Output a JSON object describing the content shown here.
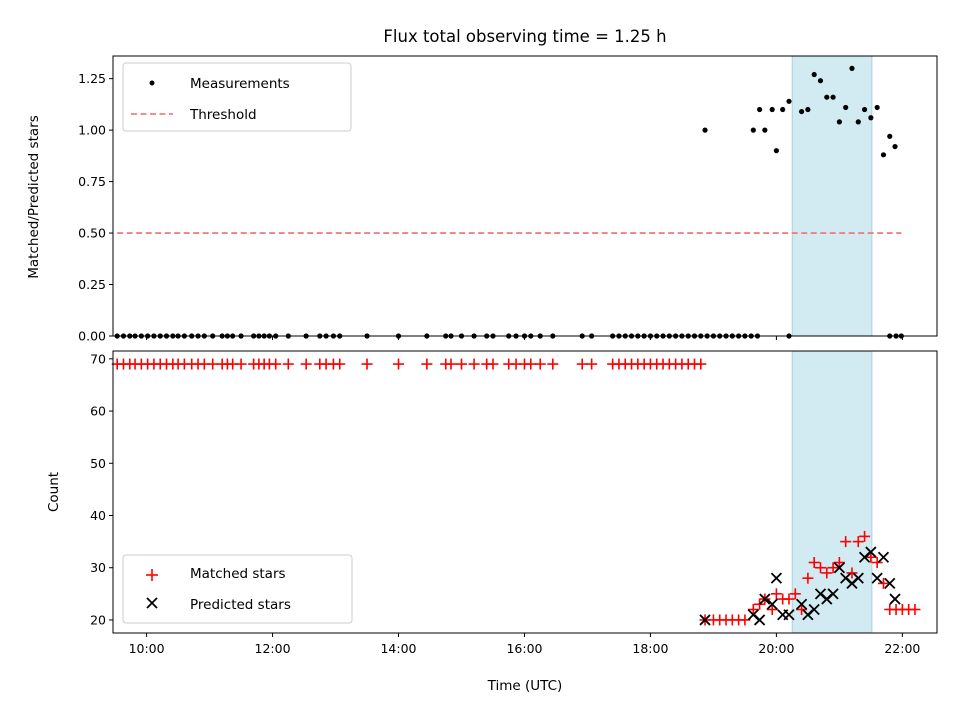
{
  "chart_data": [
    {
      "type": "scatter",
      "title": "Flux total observing time = 1.25 h",
      "xlabel": "",
      "ylabel": "Matched/Predicted stars",
      "xlim": [
        "09:28",
        "22:33"
      ],
      "ylim": [
        0,
        1.36
      ],
      "yticks": [
        "0.00",
        "0.25",
        "0.50",
        "0.75",
        "1.00",
        "1.25"
      ],
      "xticks": [
        "10:00",
        "12:00",
        "14:00",
        "16:00",
        "18:00",
        "20:00",
        "22:00"
      ],
      "shaded_span": [
        "20:15",
        "21:31"
      ],
      "legend": {
        "placement": "top-left",
        "entries": [
          "Measurements",
          "Threshold"
        ]
      },
      "series": [
        {
          "name": "Measurements",
          "marker": "dot",
          "color": "#000000",
          "points": [
            [
              "09:32",
              0
            ],
            [
              "09:38",
              0
            ],
            [
              "09:44",
              0
            ],
            [
              "09:49",
              0
            ],
            [
              "09:55",
              0
            ],
            [
              "10:01",
              0
            ],
            [
              "10:07",
              0
            ],
            [
              "10:13",
              0
            ],
            [
              "10:19",
              0
            ],
            [
              "10:25",
              0
            ],
            [
              "10:30",
              0
            ],
            [
              "10:36",
              0
            ],
            [
              "10:43",
              0
            ],
            [
              "10:49",
              0
            ],
            [
              "10:55",
              0
            ],
            [
              "11:03",
              0
            ],
            [
              "11:12",
              0
            ],
            [
              "11:17",
              0
            ],
            [
              "11:22",
              0
            ],
            [
              "11:30",
              0
            ],
            [
              "11:42",
              0
            ],
            [
              "11:47",
              0
            ],
            [
              "11:52",
              0
            ],
            [
              "11:57",
              0
            ],
            [
              "12:03",
              0
            ],
            [
              "12:15",
              0
            ],
            [
              "12:32",
              0
            ],
            [
              "12:45",
              0
            ],
            [
              "12:51",
              0
            ],
            [
              "12:58",
              0
            ],
            [
              "13:04",
              0
            ],
            [
              "13:30",
              0
            ],
            [
              "14:00",
              0
            ],
            [
              "14:27",
              0
            ],
            [
              "14:45",
              0
            ],
            [
              "14:50",
              0
            ],
            [
              "15:00",
              0
            ],
            [
              "15:12",
              0
            ],
            [
              "15:24",
              0
            ],
            [
              "15:30",
              0
            ],
            [
              "15:45",
              0
            ],
            [
              "15:52",
              0
            ],
            [
              "16:00",
              0
            ],
            [
              "16:06",
              0
            ],
            [
              "16:15",
              0
            ],
            [
              "16:27",
              0
            ],
            [
              "16:55",
              0
            ],
            [
              "17:04",
              0
            ],
            [
              "17:24",
              0
            ],
            [
              "17:30",
              0
            ],
            [
              "17:36",
              0
            ],
            [
              "17:42",
              0
            ],
            [
              "17:48",
              0
            ],
            [
              "17:54",
              0
            ],
            [
              "18:00",
              0
            ],
            [
              "18:06",
              0
            ],
            [
              "18:12",
              0
            ],
            [
              "18:18",
              0
            ],
            [
              "18:24",
              0
            ],
            [
              "18:30",
              0
            ],
            [
              "18:36",
              0
            ],
            [
              "18:42",
              0
            ],
            [
              "18:48",
              0
            ],
            [
              "18:54",
              0
            ],
            [
              "19:00",
              0
            ],
            [
              "19:06",
              0
            ],
            [
              "19:12",
              0
            ],
            [
              "19:18",
              0
            ],
            [
              "19:24",
              0
            ],
            [
              "19:30",
              0
            ],
            [
              "19:36",
              0
            ],
            [
              "19:42",
              0
            ],
            [
              "20:12",
              0
            ],
            [
              "21:48",
              0
            ],
            [
              "21:54",
              0
            ],
            [
              "21:59",
              0
            ],
            [
              "18:52",
              1.0
            ],
            [
              "19:38",
              1.0
            ],
            [
              "19:44",
              1.1
            ],
            [
              "19:49",
              1.0
            ],
            [
              "19:56",
              1.1
            ],
            [
              "20:00",
              0.9
            ],
            [
              "20:06",
              1.1
            ],
            [
              "20:12",
              1.14
            ],
            [
              "20:24",
              1.09
            ],
            [
              "20:30",
              1.1
            ],
            [
              "20:36",
              1.27
            ],
            [
              "20:42",
              1.24
            ],
            [
              "20:48",
              1.16
            ],
            [
              "20:54",
              1.16
            ],
            [
              "21:00",
              1.04
            ],
            [
              "21:06",
              1.11
            ],
            [
              "21:12",
              1.3
            ],
            [
              "21:18",
              1.04
            ],
            [
              "21:24",
              1.1
            ],
            [
              "21:30",
              1.06
            ],
            [
              "21:36",
              1.11
            ],
            [
              "21:42",
              0.88
            ],
            [
              "21:48",
              0.97
            ],
            [
              "21:53",
              0.92
            ]
          ]
        },
        {
          "name": "Threshold",
          "marker": "dashed-line",
          "color": "#f08080",
          "points": [
            [
              "09:32",
              0.5
            ],
            [
              "21:59",
              0.5
            ]
          ]
        }
      ]
    },
    {
      "type": "scatter",
      "title": "",
      "xlabel": "Time (UTC)",
      "ylabel": "Count",
      "xlim": [
        "09:28",
        "22:33"
      ],
      "ylim": [
        17.5,
        71.5
      ],
      "yticks": [
        "20",
        "30",
        "40",
        "50",
        "60",
        "70"
      ],
      "xticks": [
        "10:00",
        "12:00",
        "14:00",
        "16:00",
        "18:00",
        "20:00",
        "22:00"
      ],
      "shaded_span": [
        "20:15",
        "21:31"
      ],
      "legend": {
        "placement": "bottom-left",
        "entries": [
          "Matched stars",
          "Predicted stars"
        ]
      },
      "series": [
        {
          "name": "Matched stars",
          "marker": "plus",
          "color": "#ff0000",
          "points": [
            [
              "09:32",
              69
            ],
            [
              "09:38",
              69
            ],
            [
              "09:44",
              69
            ],
            [
              "09:49",
              69
            ],
            [
              "09:55",
              69
            ],
            [
              "10:01",
              69
            ],
            [
              "10:07",
              69
            ],
            [
              "10:13",
              69
            ],
            [
              "10:19",
              69
            ],
            [
              "10:25",
              69
            ],
            [
              "10:30",
              69
            ],
            [
              "10:36",
              69
            ],
            [
              "10:43",
              69
            ],
            [
              "10:49",
              69
            ],
            [
              "10:55",
              69
            ],
            [
              "11:03",
              69
            ],
            [
              "11:12",
              69
            ],
            [
              "11:17",
              69
            ],
            [
              "11:22",
              69
            ],
            [
              "11:30",
              69
            ],
            [
              "11:42",
              69
            ],
            [
              "11:47",
              69
            ],
            [
              "11:52",
              69
            ],
            [
              "11:57",
              69
            ],
            [
              "12:03",
              69
            ],
            [
              "12:15",
              69
            ],
            [
              "12:32",
              69
            ],
            [
              "12:45",
              69
            ],
            [
              "12:51",
              69
            ],
            [
              "12:58",
              69
            ],
            [
              "13:04",
              69
            ],
            [
              "13:30",
              69
            ],
            [
              "14:00",
              69
            ],
            [
              "14:27",
              69
            ],
            [
              "14:45",
              69
            ],
            [
              "14:50",
              69
            ],
            [
              "15:00",
              69
            ],
            [
              "15:12",
              69
            ],
            [
              "15:24",
              69
            ],
            [
              "15:30",
              69
            ],
            [
              "15:45",
              69
            ],
            [
              "15:52",
              69
            ],
            [
              "16:00",
              69
            ],
            [
              "16:06",
              69
            ],
            [
              "16:15",
              69
            ],
            [
              "16:27",
              69
            ],
            [
              "16:55",
              69
            ],
            [
              "17:04",
              69
            ],
            [
              "17:24",
              69
            ],
            [
              "17:30",
              69
            ],
            [
              "17:36",
              69
            ],
            [
              "17:42",
              69
            ],
            [
              "17:48",
              69
            ],
            [
              "17:54",
              69
            ],
            [
              "18:00",
              69
            ],
            [
              "18:06",
              69
            ],
            [
              "18:12",
              69
            ],
            [
              "18:18",
              69
            ],
            [
              "18:24",
              69
            ],
            [
              "18:30",
              69
            ],
            [
              "18:36",
              69
            ],
            [
              "18:42",
              69
            ],
            [
              "18:48",
              69
            ],
            [
              "18:52",
              20
            ],
            [
              "19:00",
              20
            ],
            [
              "19:06",
              20
            ],
            [
              "19:12",
              20
            ],
            [
              "19:18",
              20
            ],
            [
              "19:24",
              20
            ],
            [
              "19:30",
              20
            ],
            [
              "19:38",
              22
            ],
            [
              "19:44",
              23
            ],
            [
              "19:49",
              24
            ],
            [
              "19:56",
              22
            ],
            [
              "20:00",
              25
            ],
            [
              "20:06",
              24
            ],
            [
              "20:12",
              24
            ],
            [
              "20:18",
              25
            ],
            [
              "20:24",
              22
            ],
            [
              "20:30",
              28
            ],
            [
              "20:36",
              31
            ],
            [
              "20:42",
              30
            ],
            [
              "20:48",
              29
            ],
            [
              "20:54",
              30
            ],
            [
              "21:00",
              31
            ],
            [
              "21:06",
              35
            ],
            [
              "21:12",
              29
            ],
            [
              "21:18",
              35
            ],
            [
              "21:24",
              36
            ],
            [
              "21:30",
              32
            ],
            [
              "21:36",
              31
            ],
            [
              "21:42",
              27
            ],
            [
              "21:48",
              22
            ],
            [
              "21:54",
              22
            ],
            [
              "22:00",
              22
            ],
            [
              "22:06",
              22
            ],
            [
              "22:12",
              22
            ]
          ]
        },
        {
          "name": "Predicted stars",
          "marker": "x",
          "color": "#000000",
          "points": [
            [
              "18:52",
              20
            ],
            [
              "19:38",
              21
            ],
            [
              "19:44",
              20
            ],
            [
              "19:49",
              24
            ],
            [
              "19:56",
              23
            ],
            [
              "20:00",
              28
            ],
            [
              "20:06",
              21
            ],
            [
              "20:12",
              21
            ],
            [
              "20:24",
              23
            ],
            [
              "20:30",
              21
            ],
            [
              "20:36",
              22
            ],
            [
              "20:42",
              25
            ],
            [
              "20:48",
              24
            ],
            [
              "20:54",
              25
            ],
            [
              "21:00",
              30
            ],
            [
              "21:06",
              28
            ],
            [
              "21:12",
              27
            ],
            [
              "21:18",
              28
            ],
            [
              "21:24",
              32
            ],
            [
              "21:30",
              33
            ],
            [
              "21:36",
              28
            ],
            [
              "21:42",
              32
            ],
            [
              "21:48",
              27
            ],
            [
              "21:53",
              24
            ]
          ]
        }
      ]
    }
  ]
}
